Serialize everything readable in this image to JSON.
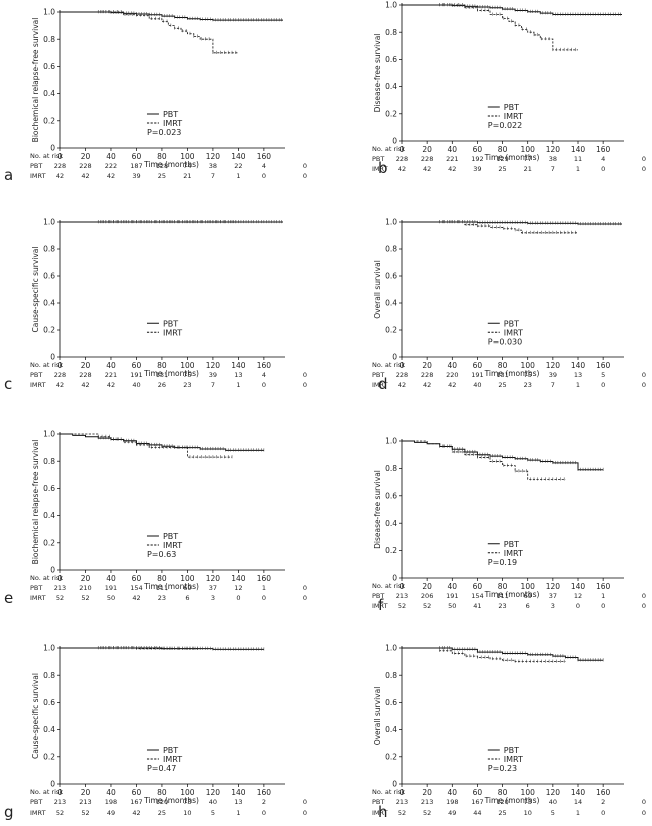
{
  "figure": {
    "risk_header": "No. at risk",
    "xlabel": "Time (months)",
    "x_ticks": [
      0,
      20,
      40,
      60,
      80,
      100,
      120,
      140,
      160
    ],
    "y_ticks": [
      0,
      0.2,
      0.4,
      0.6,
      0.8,
      1.0
    ],
    "legend": [
      "PBT",
      "IMRT"
    ]
  },
  "chart_data": [
    {
      "panel": "a",
      "type": "line",
      "ylabel": "Biochemical relapse-free survival",
      "xlabel": "Time (months)",
      "xlim": [
        0,
        175
      ],
      "ylim": [
        0,
        1.0
      ],
      "p_value": "P=0.023",
      "series": [
        {
          "name": "PBT",
          "style": "solid",
          "x": [
            0,
            20,
            40,
            50,
            60,
            70,
            80,
            90,
            100,
            110,
            120,
            175
          ],
          "y": [
            1.0,
            1.0,
            0.995,
            0.99,
            0.985,
            0.98,
            0.97,
            0.96,
            0.95,
            0.945,
            0.94,
            0.94
          ]
        },
        {
          "name": "IMRT",
          "style": "dashed",
          "x": [
            0,
            40,
            50,
            60,
            70,
            80,
            85,
            90,
            95,
            100,
            105,
            110,
            120,
            140
          ],
          "y": [
            1.0,
            1.0,
            0.98,
            0.975,
            0.95,
            0.93,
            0.9,
            0.88,
            0.86,
            0.84,
            0.82,
            0.8,
            0.7,
            0.7
          ]
        }
      ],
      "risk": {
        "PBT": [
          "228",
          "228",
          "222",
          "187",
          "128",
          "74",
          "38",
          "22",
          "4",
          "0"
        ],
        "IMRT": [
          "42",
          "42",
          "42",
          "39",
          "25",
          "21",
          "7",
          "1",
          "0",
          "0"
        ]
      }
    },
    {
      "panel": "b",
      "type": "line",
      "ylabel": "Disease-free survival",
      "xlabel": "Time (months)",
      "xlim": [
        0,
        175
      ],
      "ylim": [
        0,
        1.0
      ],
      "p_value": "P=0.022",
      "series": [
        {
          "name": "PBT",
          "style": "solid",
          "x": [
            0,
            20,
            40,
            50,
            60,
            70,
            80,
            90,
            100,
            110,
            120,
            175
          ],
          "y": [
            1.0,
            1.0,
            0.995,
            0.99,
            0.985,
            0.98,
            0.97,
            0.96,
            0.95,
            0.94,
            0.93,
            0.93
          ]
        },
        {
          "name": "IMRT",
          "style": "dashed",
          "x": [
            0,
            40,
            50,
            60,
            70,
            80,
            85,
            90,
            95,
            100,
            105,
            110,
            120,
            140
          ],
          "y": [
            1.0,
            1.0,
            0.98,
            0.96,
            0.93,
            0.9,
            0.88,
            0.85,
            0.82,
            0.8,
            0.78,
            0.75,
            0.67,
            0.67
          ]
        }
      ],
      "risk": {
        "PBT": [
          "228",
          "228",
          "221",
          "192",
          "129",
          "77",
          "38",
          "11",
          "4",
          "0"
        ],
        "IMRT": [
          "42",
          "42",
          "42",
          "39",
          "25",
          "21",
          "7",
          "1",
          "0",
          "0"
        ]
      }
    },
    {
      "panel": "c",
      "type": "line",
      "ylabel": "Cause-specific survival",
      "xlabel": "Time (months)",
      "xlim": [
        0,
        175
      ],
      "ylim": [
        0,
        1.0
      ],
      "p_value": "",
      "series": [
        {
          "name": "PBT",
          "style": "solid",
          "x": [
            0,
            175
          ],
          "y": [
            1.0,
            1.0
          ]
        },
        {
          "name": "IMRT",
          "style": "dashed",
          "x": [
            0,
            140
          ],
          "y": [
            1.0,
            1.0
          ]
        }
      ],
      "risk": {
        "PBT": [
          "228",
          "228",
          "221",
          "191",
          "131",
          "75",
          "39",
          "13",
          "4",
          "0"
        ],
        "IMRT": [
          "42",
          "42",
          "42",
          "40",
          "26",
          "23",
          "7",
          "1",
          "0",
          "0"
        ]
      }
    },
    {
      "panel": "d",
      "type": "line",
      "ylabel": "Overall survival",
      "xlabel": "Time (months)",
      "xlim": [
        0,
        175
      ],
      "ylim": [
        0,
        1.0
      ],
      "p_value": "P=0.030",
      "series": [
        {
          "name": "PBT",
          "style": "solid",
          "x": [
            0,
            40,
            60,
            100,
            140,
            175
          ],
          "y": [
            1.0,
            1.0,
            0.995,
            0.99,
            0.985,
            0.985
          ]
        },
        {
          "name": "IMRT",
          "style": "dashed",
          "x": [
            0,
            45,
            50,
            60,
            70,
            80,
            90,
            95,
            140
          ],
          "y": [
            1.0,
            1.0,
            0.98,
            0.97,
            0.96,
            0.95,
            0.94,
            0.92,
            0.92
          ]
        }
      ],
      "risk": {
        "PBT": [
          "228",
          "228",
          "220",
          "191",
          "131",
          "75",
          "39",
          "13",
          "5",
          "0"
        ],
        "IMRT": [
          "42",
          "42",
          "42",
          "40",
          "25",
          "23",
          "7",
          "1",
          "0",
          "0"
        ]
      }
    },
    {
      "panel": "e",
      "type": "line",
      "ylabel": "Biochemical relapse-free survival",
      "xlabel": "Time (months)",
      "xlim": [
        0,
        175
      ],
      "ylim": [
        0,
        1.0
      ],
      "p_value": "P=0.63",
      "series": [
        {
          "name": "PBT",
          "style": "solid",
          "x": [
            0,
            10,
            20,
            30,
            40,
            50,
            60,
            70,
            80,
            90,
            100,
            110,
            120,
            130,
            160
          ],
          "y": [
            1.0,
            0.99,
            0.98,
            0.97,
            0.96,
            0.95,
            0.93,
            0.92,
            0.91,
            0.9,
            0.9,
            0.89,
            0.89,
            0.88,
            0.88
          ]
        },
        {
          "name": "IMRT",
          "style": "dashed",
          "x": [
            0,
            20,
            30,
            40,
            50,
            60,
            70,
            80,
            90,
            100,
            135
          ],
          "y": [
            1.0,
            1.0,
            0.98,
            0.96,
            0.94,
            0.92,
            0.9,
            0.9,
            0.9,
            0.83,
            0.83
          ]
        }
      ],
      "risk": {
        "PBT": [
          "213",
          "210",
          "191",
          "154",
          "111",
          "69",
          "37",
          "12",
          "1",
          "0"
        ],
        "IMRT": [
          "52",
          "52",
          "50",
          "42",
          "23",
          "6",
          "3",
          "0",
          "0",
          "0"
        ]
      }
    },
    {
      "panel": "f",
      "type": "line",
      "ylabel": "Disease-free survival",
      "xlabel": "Time (months)",
      "xlim": [
        0,
        175
      ],
      "ylim": [
        0,
        1.0
      ],
      "p_value": "P=0.19",
      "series": [
        {
          "name": "PBT",
          "style": "solid",
          "x": [
            0,
            10,
            20,
            30,
            40,
            50,
            60,
            70,
            80,
            90,
            100,
            110,
            120,
            130,
            140,
            160
          ],
          "y": [
            1.0,
            0.99,
            0.98,
            0.96,
            0.94,
            0.92,
            0.9,
            0.89,
            0.88,
            0.87,
            0.86,
            0.85,
            0.84,
            0.84,
            0.79,
            0.79
          ]
        },
        {
          "name": "IMRT",
          "style": "dashed",
          "x": [
            0,
            20,
            30,
            40,
            50,
            60,
            70,
            80,
            90,
            100,
            130
          ],
          "y": [
            1.0,
            0.98,
            0.96,
            0.92,
            0.9,
            0.88,
            0.85,
            0.82,
            0.78,
            0.72,
            0.72
          ]
        }
      ],
      "risk": {
        "PBT": [
          "213",
          "206",
          "191",
          "154",
          "111",
          "69",
          "37",
          "12",
          "1",
          "0"
        ],
        "IMRT": [
          "52",
          "52",
          "50",
          "41",
          "23",
          "6",
          "3",
          "0",
          "0",
          "0"
        ]
      }
    },
    {
      "panel": "g",
      "type": "line",
      "ylabel": "Cause-specific survival",
      "xlabel": "Time (months)",
      "xlim": [
        0,
        175
      ],
      "ylim": [
        0,
        1.0
      ],
      "p_value": "P=0.47",
      "series": [
        {
          "name": "PBT",
          "style": "solid",
          "x": [
            0,
            50,
            80,
            120,
            160
          ],
          "y": [
            1.0,
            1.0,
            0.995,
            0.99,
            0.99
          ]
        },
        {
          "name": "IMRT",
          "style": "dashed",
          "x": [
            0,
            20,
            40,
            60,
            80,
            100,
            110
          ],
          "y": [
            1.0,
            1.0,
            1.0,
            0.995,
            0.995,
            0.995,
            0.995
          ]
        }
      ],
      "risk": {
        "PBT": [
          "213",
          "213",
          "198",
          "167",
          "120",
          "73",
          "40",
          "13",
          "2",
          "0"
        ],
        "IMRT": [
          "52",
          "52",
          "49",
          "42",
          "25",
          "10",
          "5",
          "1",
          "0",
          "0"
        ]
      }
    },
    {
      "panel": "h",
      "type": "line",
      "ylabel": "Overall survival",
      "xlabel": "Time (months)",
      "xlim": [
        0,
        175
      ],
      "ylim": [
        0,
        1.0
      ],
      "p_value": "P=0.23",
      "series": [
        {
          "name": "PBT",
          "style": "solid",
          "x": [
            0,
            20,
            40,
            60,
            80,
            100,
            120,
            130,
            140,
            160
          ],
          "y": [
            1.0,
            1.0,
            0.99,
            0.97,
            0.96,
            0.95,
            0.94,
            0.93,
            0.91,
            0.91
          ]
        },
        {
          "name": "IMRT",
          "style": "dashed",
          "x": [
            0,
            20,
            30,
            40,
            50,
            60,
            70,
            80,
            90,
            100,
            130
          ],
          "y": [
            1.0,
            1.0,
            0.98,
            0.96,
            0.94,
            0.93,
            0.92,
            0.91,
            0.9,
            0.9,
            0.9
          ]
        }
      ],
      "risk": {
        "PBT": [
          "213",
          "213",
          "198",
          "167",
          "120",
          "73",
          "40",
          "14",
          "2",
          "0"
        ],
        "IMRT": [
          "52",
          "52",
          "49",
          "44",
          "25",
          "10",
          "5",
          "1",
          "0",
          "0"
        ]
      }
    }
  ]
}
